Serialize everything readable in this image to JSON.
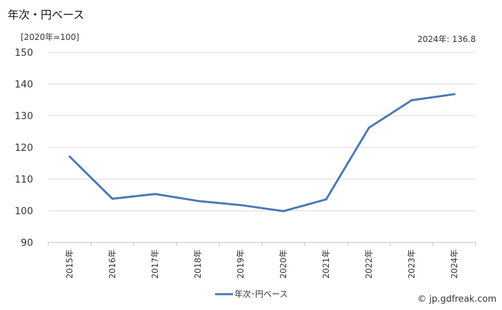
{
  "header": {
    "title": "年次・円ベース",
    "unit": "[2020年=100]",
    "latest": "2024年: 136.8"
  },
  "footer": {
    "watermark": "© jp.gdfreak.com"
  },
  "colors": {
    "series": "#4a78b4",
    "grid": "#d9d9d9"
  },
  "chart_data": {
    "type": "line",
    "title": "年次・円ベース",
    "ylabel": "[2020年=100]",
    "ylim": [
      90,
      150
    ],
    "yticks": [
      90,
      100,
      110,
      120,
      130,
      140,
      150
    ],
    "grid": true,
    "legend_position": "bottom",
    "categories": [
      "2015年",
      "2016年",
      "2017年",
      "2018年",
      "2019年",
      "2020年",
      "2021年",
      "2022年",
      "2023年",
      "2024年"
    ],
    "series": [
      {
        "name": "年次･円ベース",
        "values": [
          117.1,
          103.8,
          105.3,
          103.1,
          101.8,
          99.9,
          103.6,
          126.2,
          134.9,
          136.8
        ]
      }
    ]
  }
}
